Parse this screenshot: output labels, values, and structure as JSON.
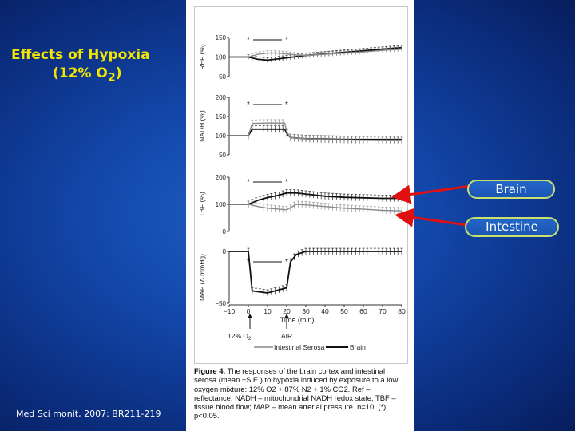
{
  "slide": {
    "title_line1": "Effects of Hypoxia",
    "title_line2_prefix": "(12% O",
    "title_line2_sub": "2",
    "title_line2_suffix": ")",
    "citation": "Med Sci monit, 2007: BR211-219",
    "callouts": {
      "brain": "Brain",
      "intestine": "Intestine"
    },
    "accent_color": "#f2e600",
    "arrow_color": "#e01010"
  },
  "figure": {
    "caption_bold": "Figure 4.",
    "caption_text": "The responses of the brain cortex and intestinal serosa (mean ±S.E.) to hypoxia induced by exposure to a low oxygen mixture: 12% O2 + 87% N2 + 1% CO2. Ref – reflectance; NADH – mitochondrial NADH redox state; TBF – tissue blood flow; MAP – mean arterial pressure. n=10, (*) p<0.05.",
    "xaxis_title": "Time (min)",
    "x_ticks": [
      "−10",
      "0",
      "10",
      "20",
      "30",
      "40",
      "50",
      "60",
      "70",
      "80"
    ],
    "annot_hypoxia": "12% O",
    "annot_hypoxia_sub": "2",
    "annot_air": "AIR",
    "legend": {
      "intestinal": "Intestinal Serosa",
      "brain": "Brain"
    },
    "significance_mark": "*"
  },
  "chart_data": [
    {
      "type": "line",
      "ylabel": "REF (%)",
      "y_ticks": [
        "150",
        "100",
        "50"
      ],
      "ylim": [
        50,
        150
      ],
      "x": [
        -10,
        0,
        5,
        10,
        15,
        20,
        25,
        30,
        40,
        50,
        60,
        70,
        80
      ],
      "series": [
        {
          "name": "Brain",
          "values": [
            100,
            100,
            94,
            92,
            95,
            98,
            101,
            104,
            108,
            112,
            116,
            120,
            124
          ]
        },
        {
          "name": "Intestinal Serosa",
          "values": [
            100,
            100,
            107,
            110,
            110,
            108,
            105,
            104,
            107,
            110,
            113,
            117,
            120
          ]
        }
      ],
      "significance": "* 0 to 20 min"
    },
    {
      "type": "line",
      "ylabel": "NADH (%)",
      "y_ticks": [
        "200",
        "150",
        "100",
        "50"
      ],
      "ylim": [
        50,
        200
      ],
      "x": [
        -10,
        0,
        2,
        10,
        19,
        20,
        22,
        30,
        40,
        50,
        60,
        70,
        80
      ],
      "series": [
        {
          "name": "Brain",
          "values": [
            100,
            100,
            117,
            117,
            117,
            106,
            95,
            92,
            91,
            90,
            90,
            90,
            90
          ]
        },
        {
          "name": "Intestinal Serosa",
          "values": [
            100,
            100,
            132,
            133,
            133,
            110,
            95,
            92,
            90,
            89,
            88,
            87,
            87
          ]
        }
      ],
      "significance": "* 0 to 20 min"
    },
    {
      "type": "line",
      "ylabel": "TBF (%)",
      "y_ticks": [
        "200",
        "100",
        "0"
      ],
      "ylim": [
        0,
        200
      ],
      "x": [
        -10,
        0,
        5,
        10,
        15,
        20,
        25,
        30,
        40,
        50,
        60,
        70,
        80
      ],
      "series": [
        {
          "name": "Brain",
          "values": [
            100,
            100,
            115,
            125,
            132,
            142,
            142,
            138,
            130,
            126,
            124,
            122,
            122
          ]
        },
        {
          "name": "Intestinal Serosa",
          "values": [
            100,
            100,
            92,
            86,
            83,
            80,
            100,
            98,
            92,
            86,
            82,
            78,
            76
          ]
        }
      ],
      "significance": "* 0 to 20 min"
    },
    {
      "type": "line",
      "ylabel": "MAP (Δ mmHg)",
      "y_ticks": [
        "0",
        "−50"
      ],
      "ylim": [
        -50,
        0
      ],
      "x": [
        -10,
        0,
        2,
        10,
        20,
        22,
        25,
        30,
        40,
        50,
        60,
        70,
        80
      ],
      "series": [
        {
          "name": "Brain",
          "values": [
            0,
            0,
            -38,
            -40,
            -35,
            -10,
            -3,
            0,
            0,
            0,
            0,
            0,
            0
          ]
        }
      ],
      "significance": "* 0 to 20 min"
    }
  ]
}
